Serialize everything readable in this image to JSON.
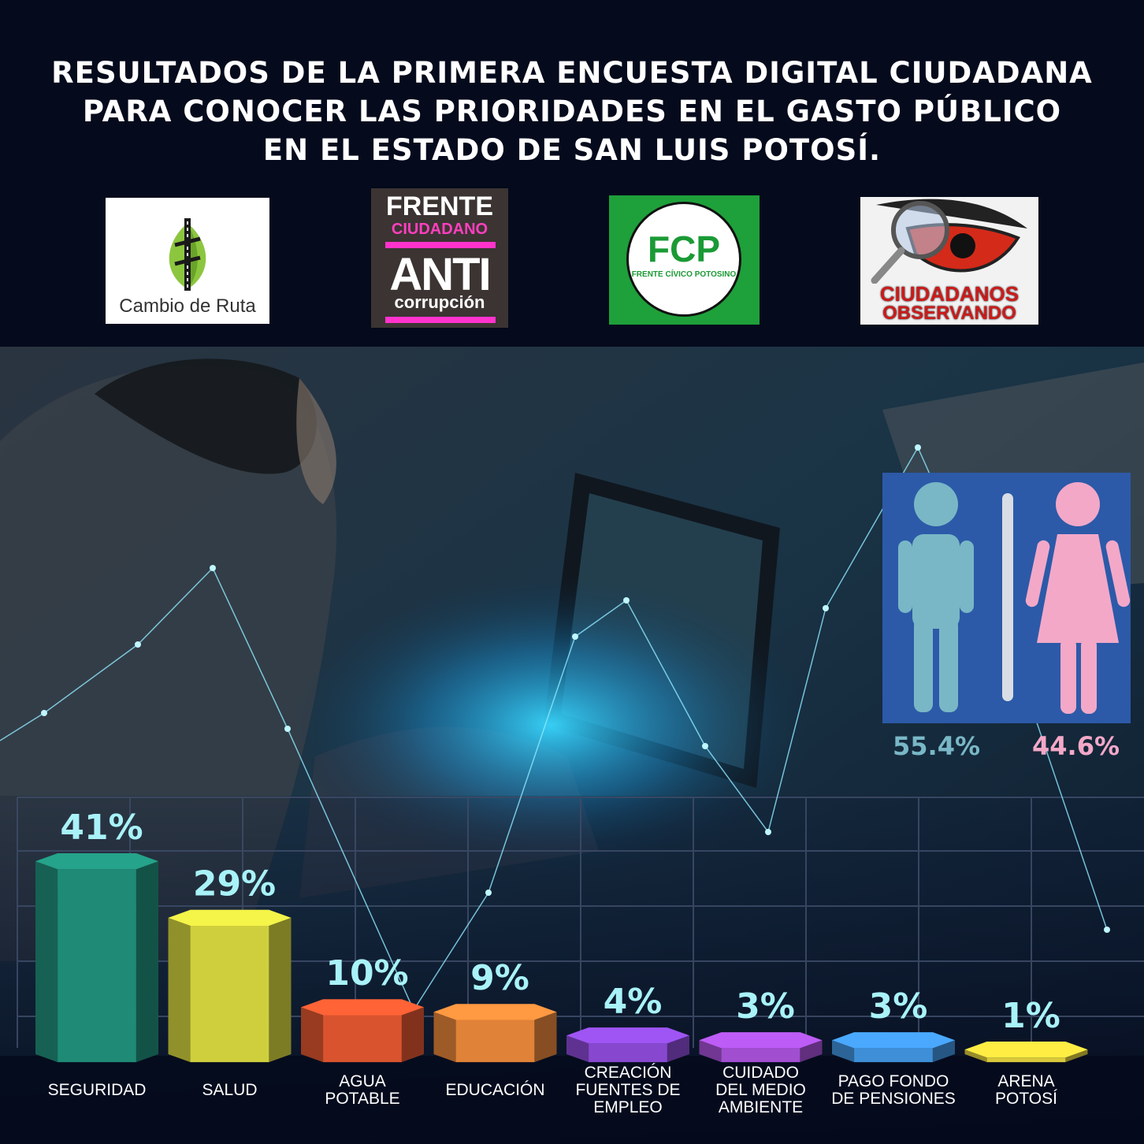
{
  "title": {
    "line1": "RESULTADOS  DE LA PRIMERA ENCUESTA DIGITAL CIUDADANA",
    "line2": "PARA CONOCER LAS PRIORIDADES EN EL GASTO PÚBLICO",
    "line3": "EN EL ESTADO DE SAN LUIS POTOSÍ."
  },
  "logos": {
    "cambio_de_ruta": "Cambio de Ruta",
    "frente_line1": "FRENTE",
    "frente_line2": "CIUDADANO",
    "frente_line3": "ANTI",
    "frente_line4": "corrupción",
    "fcp_short": "FCP",
    "fcp_full": "FRENTE CÍVICO POTOSINO",
    "ciudadanos_line1": "CIUDADANOS",
    "ciudadanos_line2": "OBSERVANDO"
  },
  "gender": {
    "male": {
      "value": 55.4,
      "label": "55.4%",
      "color": "#79b7c6"
    },
    "female": {
      "value": 44.6,
      "label": "44.6%",
      "color": "#f3a8c8"
    },
    "panel_color": "#2c5aa8"
  },
  "chart_data": {
    "type": "bar",
    "categories": [
      [
        "SEGURIDAD"
      ],
      [
        "SALUD"
      ],
      [
        "AGUA",
        "POTABLE"
      ],
      [
        "EDUCACIÓN"
      ],
      [
        "CREACIÓN",
        "FUENTES DE",
        "EMPLEO"
      ],
      [
        "CUIDADO",
        "DEL MEDIO",
        "AMBIENTE"
      ],
      [
        "PAGO FONDO",
        "DE PENSIONES"
      ],
      [
        "ARENA",
        "POTOSÍ"
      ]
    ],
    "values": [
      41,
      29,
      10,
      9,
      4,
      3,
      3,
      1
    ],
    "value_labels": [
      "41%",
      "29%",
      "10%",
      "9%",
      "4%",
      "3%",
      "3%",
      "1%"
    ],
    "colors": [
      "#1f8a76",
      "#cfcf3e",
      "#d9542e",
      "#e08238",
      "#8748cf",
      "#a14ed1",
      "#3f8fd8",
      "#d9c93a"
    ],
    "value_label_color": "#a8f2f8",
    "ylim": [
      0,
      41
    ]
  }
}
